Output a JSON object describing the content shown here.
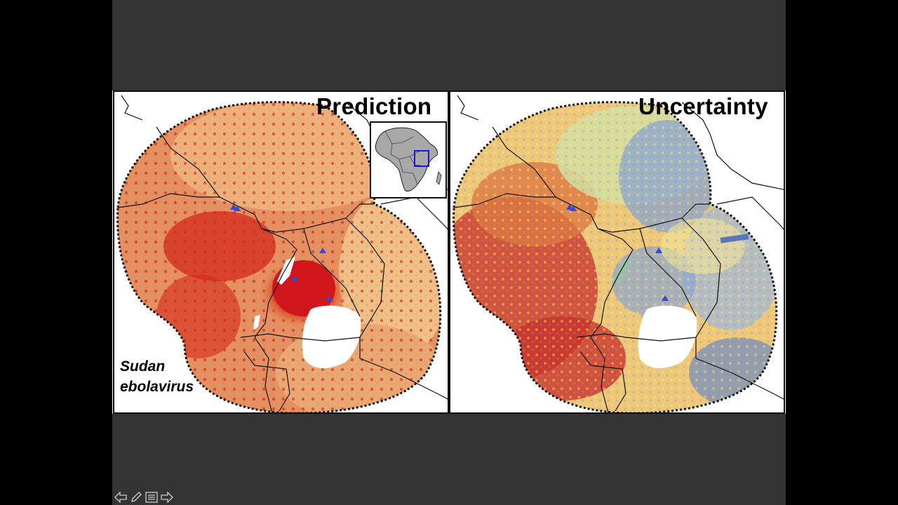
{
  "panels": {
    "prediction": {
      "title": "Prediction",
      "species_line1": "Sudan",
      "species_line2": "ebolavirus",
      "inset_label": "Africa locator map"
    },
    "uncertainty": {
      "title": "Uncertainty"
    }
  },
  "colors": {
    "background": "#333333",
    "prediction_low": "#f0c48c",
    "prediction_mid": "#e07a48",
    "prediction_high": "#d0161a",
    "uncertainty_low": "#5b76b8",
    "uncertainty_mid": "#f2e494",
    "uncertainty_high": "#c9332a",
    "outbreak_marker": "#3b48c8",
    "locator_box": "#1a1acc"
  },
  "controls": [
    "back-arrow-icon",
    "pen-icon",
    "menu-icon",
    "forward-arrow-icon"
  ]
}
